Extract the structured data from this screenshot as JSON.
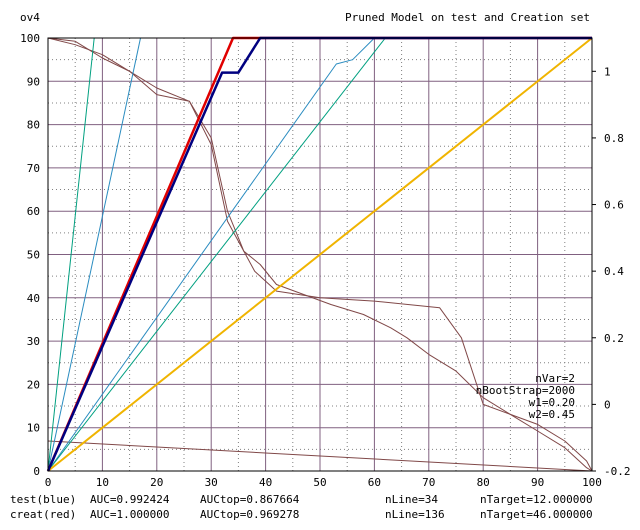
{
  "chart_data": {
    "type": "line",
    "title": "Pruned Model on test and Creation set",
    "corner_label": "ov4",
    "x_ticks": [
      0,
      10,
      20,
      30,
      40,
      50,
      60,
      70,
      80,
      90,
      100
    ],
    "xlim": [
      0,
      100
    ],
    "y_ticks": [
      0,
      10,
      20,
      30,
      40,
      50,
      60,
      70,
      80,
      90,
      100
    ],
    "ylim": [
      0,
      100
    ],
    "y2_ticks": [
      -0.2,
      0,
      0.2,
      0.4,
      0.6,
      0.8,
      1
    ],
    "y2_tick_labels": [
      "-0.2",
      "0",
      "0.2",
      "0.4",
      "0.6",
      "0.8",
      "1"
    ],
    "y2lim": [
      -0.2,
      1.1
    ],
    "grid": true,
    "annotations": [
      "nVar=2",
      "nBootStrap=2000",
      "w1=0.20",
      "w2=0.45"
    ],
    "footer": [
      [
        "test(blue)",
        "AUC=0.992424",
        "AUCtop=0.867664",
        "nLine=34",
        "nTarget=12.000000"
      ],
      [
        "creat(red)",
        "AUC=1.000000",
        "AUCtop=0.969278",
        "nLine=136",
        "nTarget=46.000000"
      ]
    ],
    "colors": {
      "test": "#000080",
      "creat": "#e00000",
      "random": "#f0b400",
      "guide": "#2a8cc0",
      "guide2": "#00a080",
      "score": "#804848",
      "grid_major": "#806080",
      "grid_minor": "#808080"
    },
    "series": [
      {
        "key": "test",
        "x": [
          0,
          32,
          35,
          39,
          100
        ],
        "y": [
          0,
          92,
          92,
          100,
          100
        ]
      },
      {
        "key": "creat",
        "x": [
          0,
          34,
          100
        ],
        "y": [
          0,
          100,
          100
        ]
      },
      {
        "key": "random",
        "x": [
          0,
          100
        ],
        "y": [
          0,
          100
        ]
      },
      {
        "key": "guide_a",
        "x": [
          0,
          8.5
        ],
        "y": [
          0,
          100
        ]
      },
      {
        "key": "guide_b",
        "x": [
          0,
          17
        ],
        "y": [
          0,
          100
        ]
      },
      {
        "key": "guide_c",
        "x": [
          0,
          53,
          56,
          60
        ],
        "y": [
          0,
          94,
          95,
          100
        ]
      },
      {
        "key": "guide_d",
        "x": [
          0,
          62
        ],
        "y": [
          0,
          100
        ]
      },
      {
        "key": "score_a",
        "axis": "y2",
        "x": [
          0,
          5,
          8,
          10,
          15,
          20,
          26,
          30,
          33,
          35,
          36,
          39,
          42,
          47,
          52,
          58,
          63,
          66,
          70,
          75,
          80,
          85,
          90,
          95,
          99,
          100
        ],
        "y": [
          1.1,
          1.09,
          1.06,
          1.04,
          1.0,
          0.93,
          0.91,
          0.8,
          0.58,
          0.5,
          0.46,
          0.42,
          0.36,
          0.33,
          0.3,
          0.27,
          0.23,
          0.2,
          0.15,
          0.1,
          0.02,
          -0.03,
          -0.08,
          -0.13,
          -0.19,
          -0.2
        ]
      },
      {
        "key": "score_b",
        "axis": "y2",
        "x": [
          0,
          5,
          10,
          20,
          26,
          30,
          33,
          38,
          42,
          50,
          60,
          72,
          76,
          80,
          85,
          90,
          95,
          99,
          100
        ],
        "y": [
          1.1,
          1.08,
          1.05,
          0.95,
          0.91,
          0.78,
          0.55,
          0.4,
          0.34,
          0.32,
          0.31,
          0.29,
          0.2,
          0.0,
          -0.03,
          -0.06,
          -0.11,
          -0.17,
          -0.2
        ]
      },
      {
        "key": "score_c",
        "axis": "y2",
        "x": [
          0,
          100
        ],
        "y": [
          -0.11,
          -0.2
        ]
      }
    ]
  }
}
